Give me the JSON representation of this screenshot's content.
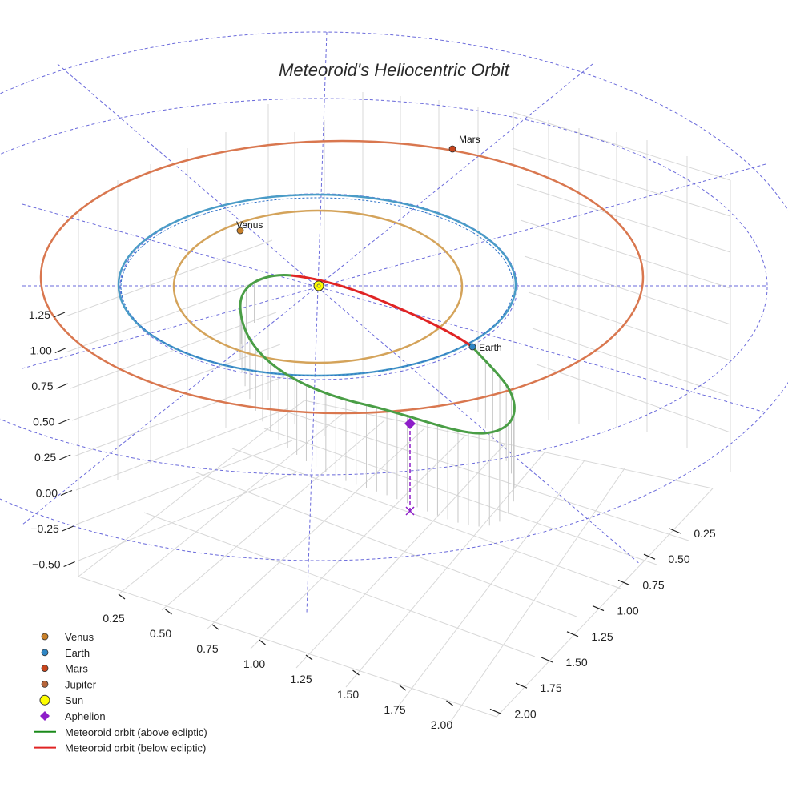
{
  "chart_data": {
    "type": "scatter",
    "title": "Meteoroid's Heliocentric Orbit",
    "axes": {
      "x_ticks": [
        "0.25",
        "0.50",
        "0.75",
        "1.00",
        "1.25",
        "1.50",
        "1.75",
        "2.00"
      ],
      "y_ticks": [
        "0.25",
        "0.50",
        "0.75",
        "1.00",
        "1.25",
        "1.50",
        "1.75",
        "2.00"
      ],
      "z_ticks": [
        "1.25",
        "1.00",
        "0.75",
        "0.50",
        "0.25",
        "0.00",
        "−0.25",
        "−0.50"
      ],
      "z_range": [
        -0.5,
        1.25
      ]
    },
    "orbits": [
      {
        "name": "Venus orbit",
        "radius_au": 0.72,
        "color": "#d4a35a"
      },
      {
        "name": "Earth orbit",
        "radius_au": 1.0,
        "color": "#4a9cc7"
      },
      {
        "name": "Mars orbit",
        "radius_au": 1.52,
        "color": "#d9774f"
      }
    ],
    "bodies": [
      {
        "name": "Sun",
        "label": "",
        "position_au": [
          0,
          0,
          0
        ],
        "color": "#ffff00"
      },
      {
        "name": "Venus",
        "label": "Venus",
        "position_au": [
          -0.46,
          0.55,
          0
        ],
        "color": "#c8802a"
      },
      {
        "name": "Earth",
        "label": "Earth",
        "position_au": [
          0.88,
          -0.48,
          0
        ],
        "color": "#2f86c4"
      },
      {
        "name": "Mars",
        "label": "Mars",
        "position_au": [
          0.75,
          1.32,
          0
        ],
        "color": "#c8451c"
      }
    ],
    "meteoroid_orbit": {
      "perihelion_au": 0.38,
      "aphelion_au": 1.3,
      "above_color": "#4a9e46",
      "below_color": "#e02424",
      "aphelion_color": "#8e1ec9"
    },
    "legend": [
      {
        "label": "Venus",
        "kind": "dot",
        "color": "#c8802a"
      },
      {
        "label": "Earth",
        "kind": "dot",
        "color": "#2f86c4"
      },
      {
        "label": "Mars",
        "kind": "dot",
        "color": "#c8451c"
      },
      {
        "label": "Jupiter",
        "kind": "dot",
        "color": "#b5653a"
      },
      {
        "label": "Sun",
        "kind": "sun",
        "color": "#ffff00"
      },
      {
        "label": "Aphelion",
        "kind": "diamond",
        "color": "#8e1ec9"
      },
      {
        "label": "Meteoroid orbit (above ecliptic)",
        "kind": "line",
        "color": "#1a8a1a"
      },
      {
        "label": "Meteoroid orbit (below ecliptic)",
        "kind": "line",
        "color": "#e02424"
      }
    ]
  }
}
